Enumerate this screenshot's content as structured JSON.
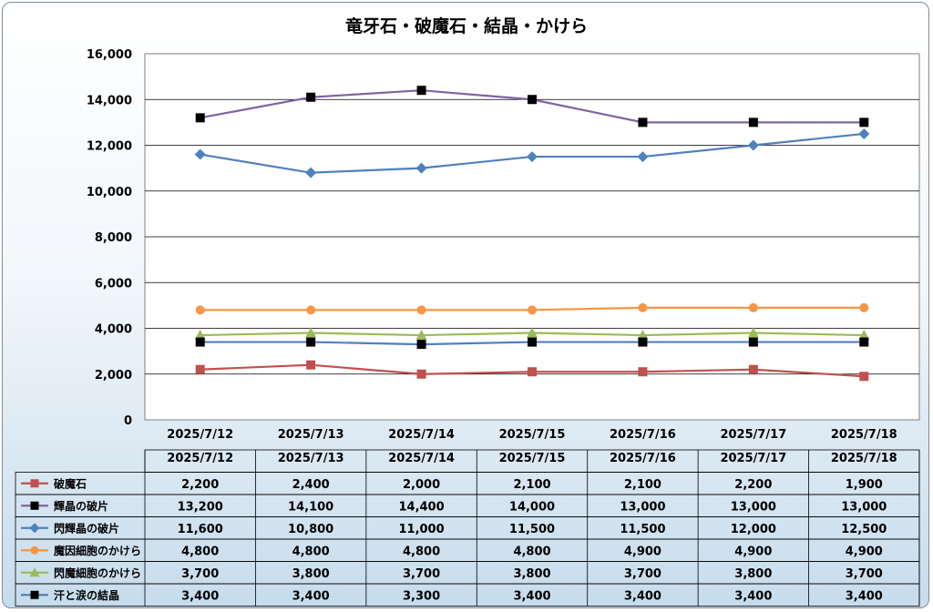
{
  "chart_data": {
    "type": "line",
    "title": "竜牙石・破魔石・結晶・かけら",
    "categories": [
      "2025/7/12",
      "2025/7/13",
      "2025/7/14",
      "2025/7/15",
      "2025/7/16",
      "2025/7/17",
      "2025/7/18"
    ],
    "ylim": [
      0,
      16000
    ],
    "yticks": [
      0,
      2000,
      4000,
      6000,
      8000,
      10000,
      12000,
      14000,
      16000
    ],
    "ytick_labels": [
      "0",
      "2,000",
      "4,000",
      "6,000",
      "8,000",
      "10,000",
      "12,000",
      "14,000",
      "16,000"
    ],
    "grid": "horizontal",
    "legend": "data-table-below",
    "series": [
      {
        "name": "破魔石",
        "color": "#c0504d",
        "marker": "square",
        "values": [
          2200,
          2400,
          2000,
          2100,
          2100,
          2200,
          1900
        ],
        "labels": [
          "2,200",
          "2,400",
          "2,000",
          "2,100",
          "2,100",
          "2,200",
          "1,900"
        ]
      },
      {
        "name": "輝晶の破片",
        "color": "#8064a2",
        "marker": "square-black",
        "values": [
          13200,
          14100,
          14400,
          14000,
          13000,
          13000,
          13000
        ],
        "labels": [
          "13,200",
          "14,100",
          "14,400",
          "14,000",
          "13,000",
          "13,000",
          "13,000"
        ]
      },
      {
        "name": "閃輝晶の破片",
        "color": "#4f81bd",
        "marker": "diamond",
        "values": [
          11600,
          10800,
          11000,
          11500,
          11500,
          12000,
          12500
        ],
        "labels": [
          "11,600",
          "10,800",
          "11,000",
          "11,500",
          "11,500",
          "12,000",
          "12,500"
        ]
      },
      {
        "name": "魔因細胞のかけら",
        "color": "#f79646",
        "marker": "circle",
        "values": [
          4800,
          4800,
          4800,
          4800,
          4900,
          4900,
          4900
        ],
        "labels": [
          "4,800",
          "4,800",
          "4,800",
          "4,800",
          "4,900",
          "4,900",
          "4,900"
        ]
      },
      {
        "name": "閃魔細胞のかけら",
        "color": "#9bbb59",
        "marker": "triangle",
        "values": [
          3700,
          3800,
          3700,
          3800,
          3700,
          3800,
          3700
        ],
        "labels": [
          "3,700",
          "3,800",
          "3,700",
          "3,800",
          "3,700",
          "3,800",
          "3,700"
        ]
      },
      {
        "name": "汗と涙の結晶",
        "color": "#4f81bd",
        "marker": "square-black",
        "values": [
          3400,
          3400,
          3300,
          3400,
          3400,
          3400,
          3400
        ],
        "labels": [
          "3,400",
          "3,400",
          "3,300",
          "3,400",
          "3,400",
          "3,400",
          "3,400"
        ]
      }
    ]
  }
}
